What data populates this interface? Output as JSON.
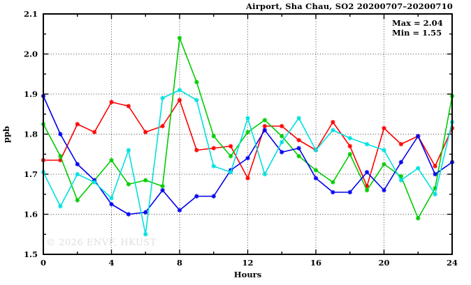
{
  "title": "Airport, Sha Chau, SO2 20200707–20200710",
  "annotations": {
    "max_label": "Max = 2.04",
    "min_label": "Min = 1.55"
  },
  "watermark": "© 2026 ENVF, HKUST",
  "chart_data": {
    "type": "line",
    "title": "Airport, Sha Chau, SO2 20200707–20200710",
    "xlabel": "Hours",
    "ylabel": "ppb",
    "xlim": [
      0,
      24
    ],
    "ylim": [
      1.5,
      2.1
    ],
    "x_major_ticks": [
      0,
      4,
      8,
      12,
      16,
      20,
      24
    ],
    "x_minor_ticks": [
      2,
      6,
      10,
      14,
      18,
      22
    ],
    "y_major_ticks": [
      1.5,
      1.6,
      1.7,
      1.8,
      1.9,
      2.0,
      2.1
    ],
    "y_minor_ticks": [
      1.55,
      1.65,
      1.75,
      1.85,
      1.95,
      2.05
    ],
    "grid": "dotted-at-major-ticks",
    "legend": "none",
    "max": 2.04,
    "min": 1.55,
    "x": [
      0,
      1,
      2,
      3,
      4,
      5,
      6,
      7,
      8,
      9,
      10,
      11,
      12,
      13,
      14,
      15,
      16,
      17,
      18,
      19,
      20,
      21,
      22,
      23,
      24
    ],
    "series": [
      {
        "name": "red-line",
        "color": "#ff0000",
        "values": [
          1.735,
          1.735,
          1.825,
          1.805,
          1.88,
          1.87,
          1.805,
          1.82,
          1.885,
          1.76,
          1.765,
          1.77,
          1.69,
          1.82,
          1.82,
          1.785,
          1.76,
          1.83,
          1.77,
          1.67,
          1.815,
          1.775,
          1.795,
          1.72,
          1.815
        ]
      },
      {
        "name": "green-line",
        "color": "#00cc00",
        "values": [
          1.825,
          1.745,
          1.635,
          1.685,
          1.735,
          1.675,
          1.685,
          1.67,
          2.04,
          1.93,
          1.795,
          1.745,
          1.805,
          1.835,
          1.795,
          1.745,
          1.71,
          1.68,
          1.75,
          1.66,
          1.725,
          1.695,
          1.59,
          1.665,
          1.895
        ]
      },
      {
        "name": "blue-line",
        "color": "#0000ee",
        "values": [
          1.895,
          1.8,
          1.725,
          1.685,
          1.625,
          1.6,
          1.605,
          1.66,
          1.61,
          1.645,
          1.645,
          1.71,
          1.74,
          1.81,
          1.755,
          1.765,
          1.69,
          1.655,
          1.655,
          1.705,
          1.66,
          1.73,
          1.795,
          1.7,
          1.73
        ]
      },
      {
        "name": "cyan-line",
        "color": "#00e0e0",
        "values": [
          1.705,
          1.62,
          1.7,
          1.68,
          1.64,
          1.76,
          1.55,
          1.89,
          1.91,
          1.885,
          1.72,
          1.705,
          1.84,
          1.7,
          1.78,
          1.84,
          1.76,
          1.81,
          1.79,
          1.775,
          1.76,
          1.685,
          1.715,
          1.65,
          1.83
        ]
      }
    ]
  }
}
